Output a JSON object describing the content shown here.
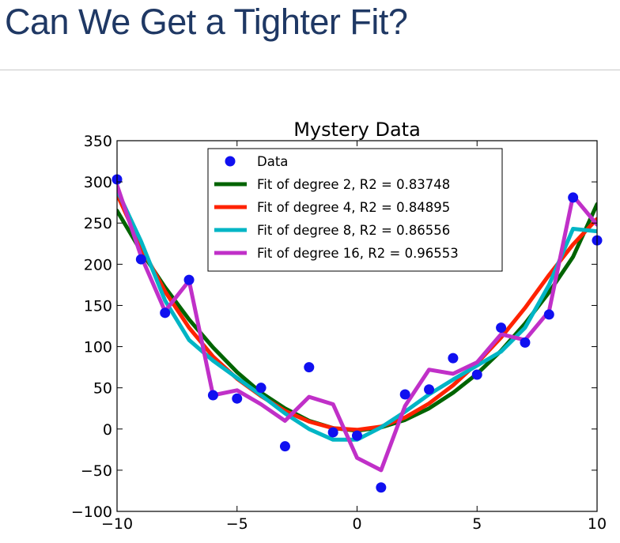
{
  "slide": {
    "title": "Can We Get a Tighter Fit?"
  },
  "chart_data": {
    "type": "line",
    "title": "Mystery Data",
    "xlabel": "",
    "ylabel": "",
    "xlim": [
      -10,
      10
    ],
    "ylim": [
      -100,
      350
    ],
    "xticks": [
      -10,
      -5,
      0,
      5,
      10
    ],
    "yticks": [
      -100,
      -50,
      0,
      50,
      100,
      150,
      200,
      250,
      300,
      350
    ],
    "grid": false,
    "legend_location": "upper-center",
    "scatter": {
      "name": "Data",
      "color": "#1010f0",
      "x": [
        -10,
        -9,
        -8,
        -7,
        -6,
        -5,
        -4,
        -3,
        -2,
        -1,
        0,
        1,
        2,
        3,
        4,
        5,
        6,
        7,
        8,
        9,
        10
      ],
      "y": [
        303,
        206,
        141,
        181,
        41,
        37,
        50,
        -21,
        75,
        -4,
        -8,
        -71,
        42,
        48,
        86,
        66,
        123,
        105,
        139,
        281,
        229
      ]
    },
    "series": [
      {
        "name": "Fit of degree 2, R2 = 0.83748",
        "color": "#006400",
        "x": [
          -10,
          -9,
          -8,
          -7,
          -6,
          -5,
          -4,
          -3,
          -2,
          -1,
          0,
          1,
          2,
          3,
          4,
          5,
          6,
          7,
          8,
          9,
          10
        ],
        "y": [
          265,
          216,
          172,
          133,
          99,
          69,
          44,
          25,
          10,
          1,
          -2,
          2,
          11,
          25,
          44,
          67,
          95,
          128,
          166,
          209,
          273
        ]
      },
      {
        "name": "Fit of degree 4, R2 = 0.84895",
        "color": "#ff2200",
        "x": [
          -10,
          -9,
          -8,
          -7,
          -6,
          -5,
          -4,
          -3,
          -2,
          -1,
          0,
          1,
          2,
          3,
          4,
          5,
          6,
          7,
          8,
          9,
          10
        ],
        "y": [
          285,
          221,
          167,
          123,
          88,
          61,
          40,
          22,
          9,
          1,
          -1,
          3,
          14,
          31,
          53,
          80,
          111,
          147,
          187,
          224,
          255
        ]
      },
      {
        "name": "Fit of degree 8, R2 = 0.86556",
        "color": "#00b5c5",
        "x": [
          -10,
          -9,
          -8,
          -7,
          -6,
          -5,
          -4,
          -3,
          -2,
          -1,
          0,
          1,
          2,
          3,
          4,
          5,
          6,
          7,
          8,
          9,
          10
        ],
        "y": [
          290,
          228,
          156,
          108,
          83,
          62,
          41,
          19,
          0,
          -13,
          -13,
          2,
          21,
          42,
          60,
          77,
          94,
          123,
          175,
          243,
          240
        ]
      },
      {
        "name": "Fit of degree 16, R2 = 0.96553",
        "color": "#c030c8",
        "x": [
          -10,
          -9,
          -8,
          -7,
          -6,
          -5,
          -4,
          -3,
          -2,
          -1,
          0,
          1,
          2,
          3,
          4,
          5,
          6,
          7,
          8,
          9,
          10
        ],
        "y": [
          296,
          210,
          143,
          180,
          41,
          47,
          30,
          10,
          39,
          30,
          -35,
          -50,
          28,
          72,
          67,
          81,
          115,
          108,
          143,
          283,
          248
        ]
      }
    ]
  }
}
